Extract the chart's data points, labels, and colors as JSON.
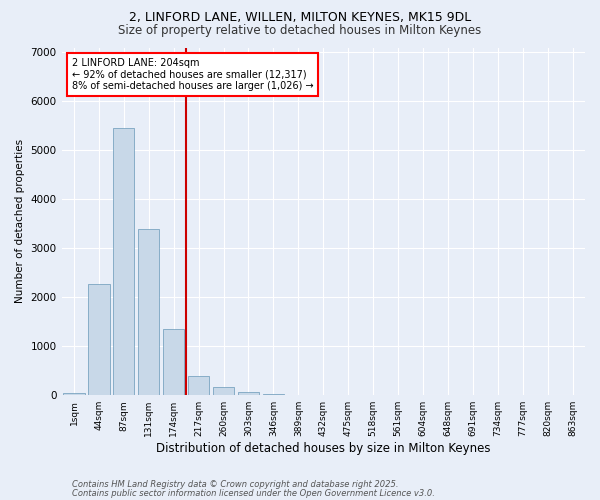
{
  "title1": "2, LINFORD LANE, WILLEN, MILTON KEYNES, MK15 9DL",
  "title2": "Size of property relative to detached houses in Milton Keynes",
  "xlabel": "Distribution of detached houses by size in Milton Keynes",
  "ylabel": "Number of detached properties",
  "categories": [
    "1sqm",
    "44sqm",
    "87sqm",
    "131sqm",
    "174sqm",
    "217sqm",
    "260sqm",
    "303sqm",
    "346sqm",
    "389sqm",
    "432sqm",
    "475sqm",
    "518sqm",
    "561sqm",
    "604sqm",
    "648sqm",
    "691sqm",
    "734sqm",
    "777sqm",
    "820sqm",
    "863sqm"
  ],
  "values": [
    50,
    2280,
    5450,
    3400,
    1350,
    390,
    160,
    60,
    20,
    5,
    2,
    1,
    0,
    0,
    0,
    0,
    0,
    0,
    0,
    0,
    0
  ],
  "bar_color": "#c8d8e8",
  "bar_edge_color": "#6898b8",
  "vline_x_pos": 4.5,
  "vline_color": "#cc0000",
  "annotation_text": "2 LINFORD LANE: 204sqm\n← 92% of detached houses are smaller (12,317)\n8% of semi-detached houses are larger (1,026) →",
  "footer1": "Contains HM Land Registry data © Crown copyright and database right 2025.",
  "footer2": "Contains public sector information licensed under the Open Government Licence v3.0.",
  "background_color": "#e8eef8",
  "grid_color": "#d0dcec",
  "ylim": [
    0,
    7100
  ],
  "title1_fontsize": 9,
  "title2_fontsize": 8.5,
  "xlabel_fontsize": 8.5,
  "ylabel_fontsize": 7.5,
  "tick_fontsize": 6.5,
  "annotation_fontsize": 7,
  "footer_fontsize": 6
}
